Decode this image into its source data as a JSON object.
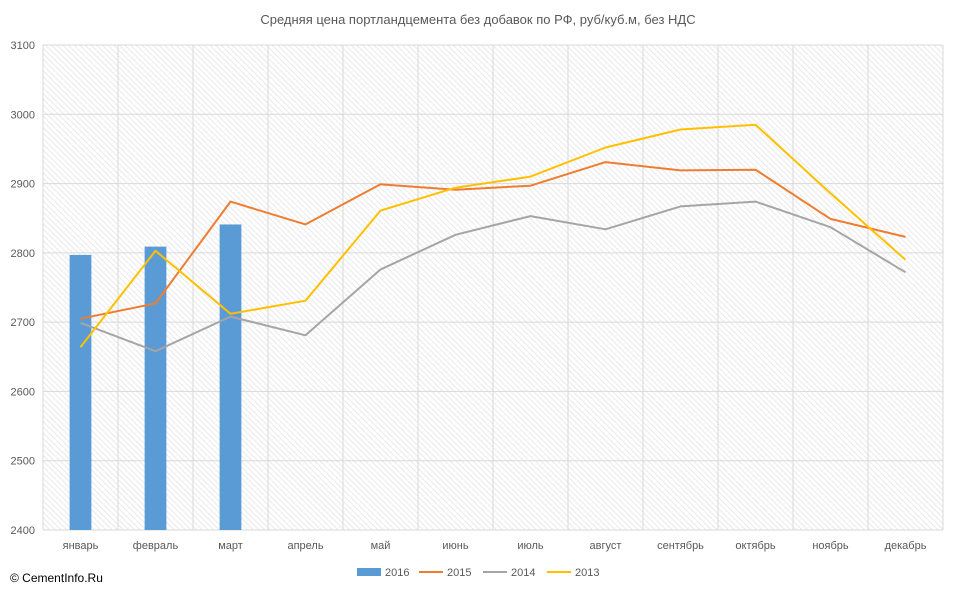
{
  "copyright": "© CementInfo.Ru",
  "chart_data": {
    "type": "bar+line",
    "title": "Средняя цена портландцемента без добавок по РФ, руб/куб.м, без НДС",
    "xlabel": "",
    "ylabel": "",
    "ylim": [
      2400,
      3100
    ],
    "yticks": [
      2400,
      2500,
      2600,
      2700,
      2800,
      2900,
      3000,
      3100
    ],
    "categories": [
      "январь",
      "февраль",
      "март",
      "апрель",
      "май",
      "июнь",
      "июль",
      "август",
      "сентябрь",
      "октябрь",
      "ноябрь",
      "декабрь"
    ],
    "grid": true,
    "legend_position": "bottom",
    "series": [
      {
        "name": "2016",
        "type": "bar",
        "color": "#5b9bd5",
        "values": [
          2797,
          2809,
          2841,
          null,
          null,
          null,
          null,
          null,
          null,
          null,
          null,
          null
        ]
      },
      {
        "name": "2015",
        "type": "line",
        "color": "#ed7d31",
        "values": [
          2705,
          2727,
          2874,
          2841,
          2899,
          2891,
          2897,
          2931,
          2919,
          2920,
          2849,
          2823
        ]
      },
      {
        "name": "2014",
        "type": "line",
        "color": "#a5a5a5",
        "values": [
          2699,
          2658,
          2708,
          2681,
          2776,
          2826,
          2853,
          2834,
          2867,
          2874,
          2837,
          2772
        ]
      },
      {
        "name": "2013",
        "type": "line",
        "color": "#ffc000",
        "values": [
          2664,
          2803,
          2712,
          2731,
          2861,
          2894,
          2910,
          2952,
          2978,
          2985,
          2886,
          2790
        ]
      }
    ]
  }
}
